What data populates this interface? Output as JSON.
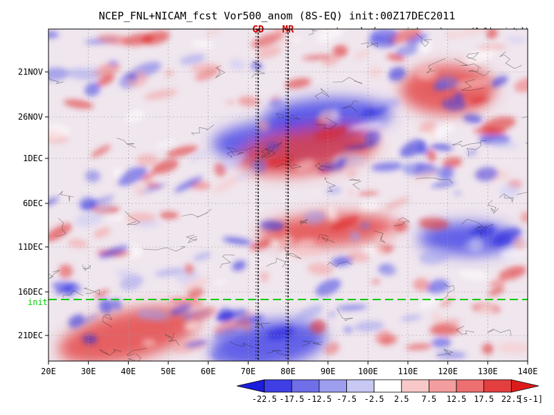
{
  "chart_data": {
    "type": "heatmap",
    "title": "NCEP_FNL+NICAM_fcst Vor500_anom (8S-EQ) init:00Z17DEC2011",
    "subtitle": "(anomaly from period mean)",
    "interp_note": "(1.0deg intpl)",
    "x_axis": {
      "ticks": [
        "20E",
        "30E",
        "40E",
        "50E",
        "60E",
        "70E",
        "80E",
        "90E",
        "100E",
        "110E",
        "120E",
        "130E",
        "140E"
      ],
      "range_deg": [
        20,
        140
      ]
    },
    "y_axis": {
      "ticks": [
        "21NOV",
        "26NOV",
        "1DEC",
        "6DEC",
        "11DEC",
        "16DEC",
        "21DEC"
      ],
      "time_increases": "downward"
    },
    "markers": [
      {
        "label": "GD",
        "lon": 72.5,
        "color": "#cc0000"
      },
      {
        "label": "MR",
        "lon": 80,
        "color": "#cc0000"
      }
    ],
    "init_line": {
      "label": "init",
      "date": "17DEC2011",
      "color": "#00cc00"
    },
    "colorbar": {
      "levels": [
        "-22.5",
        "-17.5",
        "-12.5",
        "-7.5",
        "-2.5",
        "2.5",
        "7.5",
        "12.5",
        "17.5",
        "22.5"
      ],
      "unit": "[s-1]",
      "colors": [
        "#1c1cdc",
        "#3f3fe6",
        "#6f6fe8",
        "#9e9eee",
        "#c8c8f5",
        "#ffffff",
        "#f8c8c8",
        "#f29e9e",
        "#ec7070",
        "#e43f3f",
        "#dc1c1c"
      ]
    },
    "regions": [
      {
        "name": "blue",
        "lon": 90,
        "date": "26NOV",
        "sign": "negative"
      },
      {
        "name": "blue",
        "lon": 80,
        "date": "29NOV",
        "sign": "negative"
      },
      {
        "name": "red",
        "lon": 120,
        "date": "23NOV",
        "sign": "positive"
      },
      {
        "name": "red",
        "lon": 85,
        "date": "30NOV",
        "sign": "positive"
      },
      {
        "name": "red",
        "lon": 90,
        "date": "9DEC",
        "sign": "positive"
      },
      {
        "name": "blue",
        "lon": 125,
        "date": "10DEC",
        "sign": "negative"
      },
      {
        "name": "red",
        "lon": 40,
        "date": "21DEC",
        "sign": "positive"
      },
      {
        "name": "blue",
        "lon": 75,
        "date": "22DEC",
        "sign": "negative"
      }
    ]
  }
}
